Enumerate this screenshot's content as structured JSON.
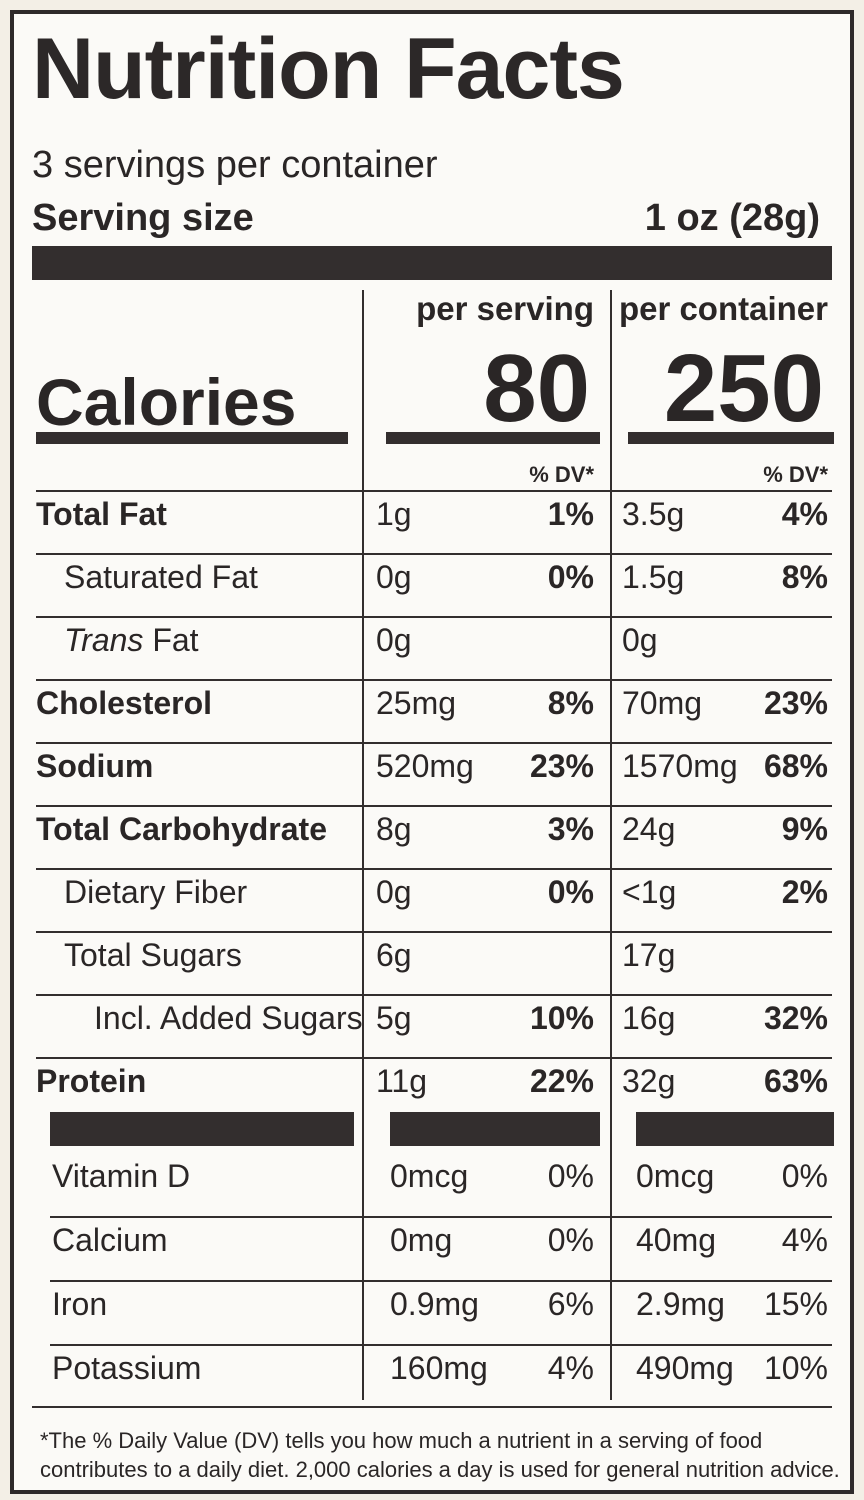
{
  "title": "Nutrition Facts",
  "servings_per_container": "3 servings per container",
  "serving_size_label": "Serving size",
  "serving_size_value": "1 oz (28g)",
  "col_per_serving": "per serving",
  "col_per_container": "per container",
  "calories_label": "Calories",
  "calories_per_serving": "80",
  "calories_per_container": "250",
  "dv_header": "% DV*",
  "nutrients": [
    {
      "name": "Total Fat",
      "bold": true,
      "indent": 0,
      "serv_amt": "1g",
      "serv_pct": "1%",
      "cont_amt": "3.5g",
      "cont_pct": "4%"
    },
    {
      "name": "Saturated Fat",
      "bold": false,
      "indent": 1,
      "serv_amt": "0g",
      "serv_pct": "0%",
      "cont_amt": "1.5g",
      "cont_pct": "8%"
    },
    {
      "name_italic": "Trans",
      "name": " Fat",
      "bold": false,
      "indent": 1,
      "serv_amt": "0g",
      "serv_pct": "",
      "cont_amt": "0g",
      "cont_pct": ""
    },
    {
      "name": "Cholesterol",
      "bold": true,
      "indent": 0,
      "serv_amt": "25mg",
      "serv_pct": "8%",
      "cont_amt": "70mg",
      "cont_pct": "23%"
    },
    {
      "name": "Sodium",
      "bold": true,
      "indent": 0,
      "serv_amt": "520mg",
      "serv_pct": "23%",
      "cont_amt": "1570mg",
      "cont_pct": "68%"
    },
    {
      "name": "Total Carbohydrate",
      "bold": true,
      "indent": 0,
      "serv_amt": "8g",
      "serv_pct": "3%",
      "cont_amt": "24g",
      "cont_pct": "9%"
    },
    {
      "name": "Dietary Fiber",
      "bold": false,
      "indent": 1,
      "serv_amt": "0g",
      "serv_pct": "0%",
      "cont_amt": "<1g",
      "cont_pct": "2%"
    },
    {
      "name": "Total Sugars",
      "bold": false,
      "indent": 1,
      "serv_amt": "6g",
      "serv_pct": "",
      "cont_amt": "17g",
      "cont_pct": ""
    },
    {
      "name": "Incl. Added Sugars",
      "bold": false,
      "indent": 2,
      "serv_amt": "5g",
      "serv_pct": "10%",
      "cont_amt": "16g",
      "cont_pct": "32%"
    },
    {
      "name": "Protein",
      "bold": true,
      "indent": 0,
      "serv_amt": "11g",
      "serv_pct": "22%",
      "cont_amt": "32g",
      "cont_pct": "63%"
    }
  ],
  "vitamins": [
    {
      "name": "Vitamin D",
      "serv_amt": "0mcg",
      "serv_pct": "0%",
      "cont_amt": "0mcg",
      "cont_pct": "0%"
    },
    {
      "name": "Calcium",
      "serv_amt": "0mg",
      "serv_pct": "0%",
      "cont_amt": "40mg",
      "cont_pct": "4%"
    },
    {
      "name": "Iron",
      "serv_amt": "0.9mg",
      "serv_pct": "6%",
      "cont_amt": "2.9mg",
      "cont_pct": "15%"
    },
    {
      "name": "Potassium",
      "serv_amt": "160mg",
      "serv_pct": "4%",
      "cont_amt": "490mg",
      "cont_pct": "10%"
    }
  ],
  "footnote": "*The % Daily Value (DV) tells you how much a nutrient in a serving of food contributes to a daily diet. 2,000 calories a day is used for general nutrition advice."
}
